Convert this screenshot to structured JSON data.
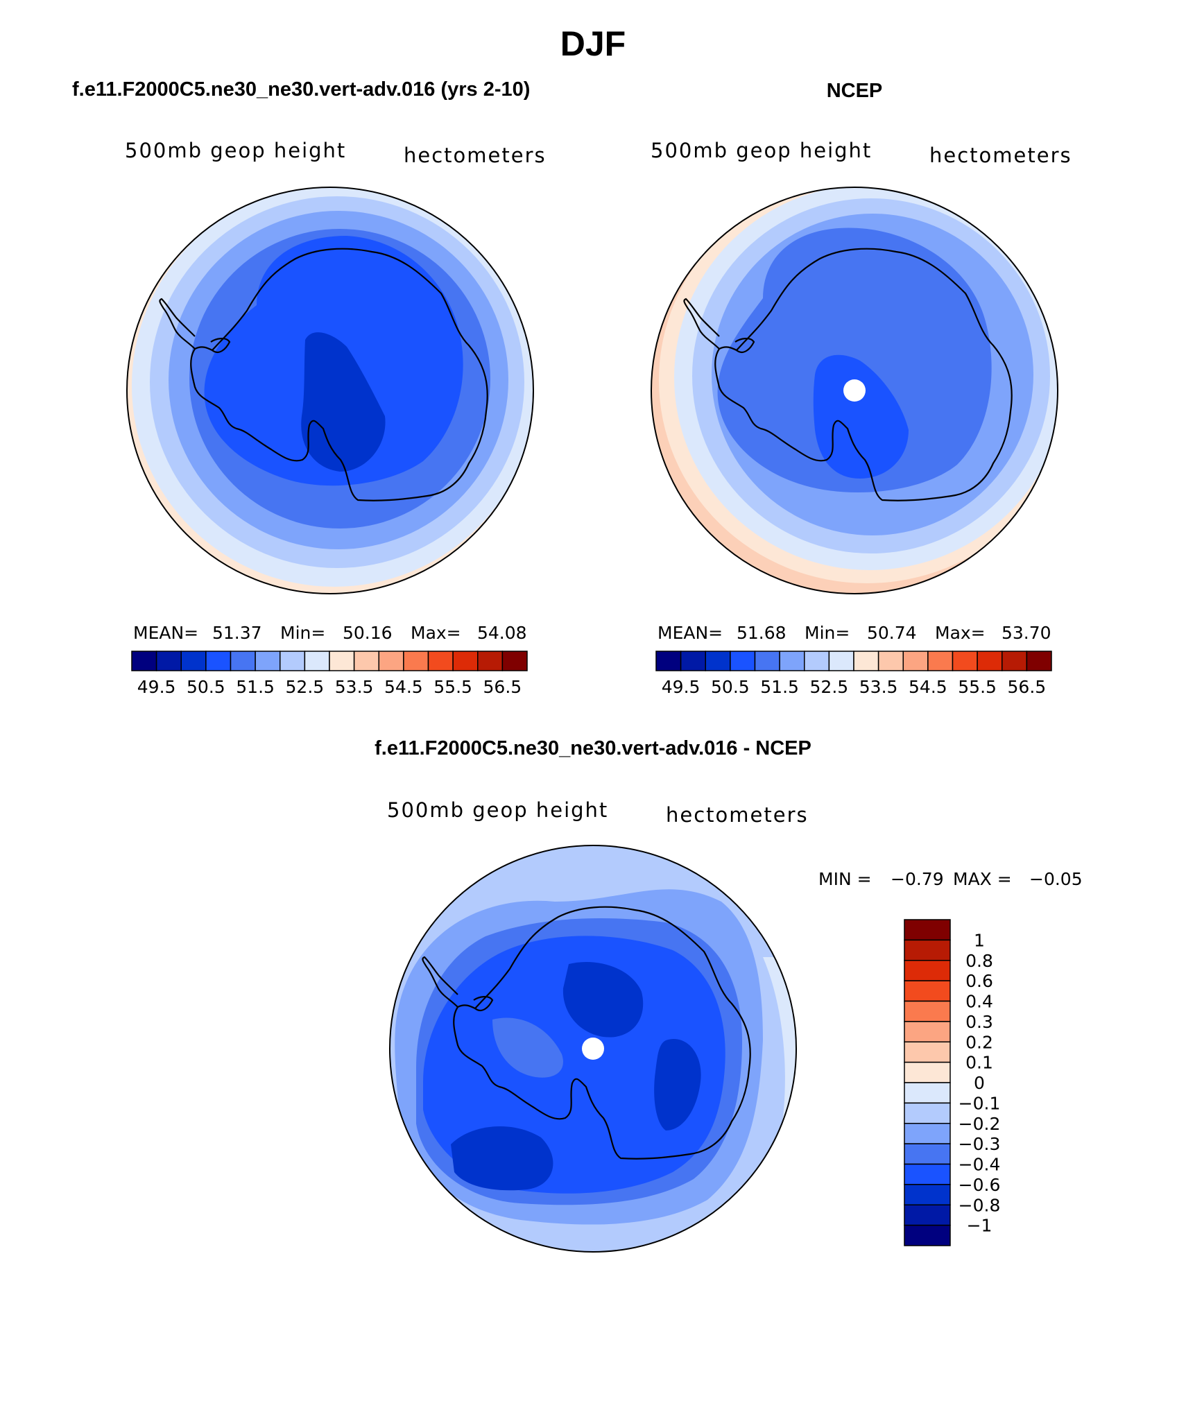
{
  "figure": {
    "title": "DJF",
    "bottom_title": "f.e11.F2000C5.ne30_ne30.vert-adv.016 - NCEP"
  },
  "panels": [
    {
      "heading": "f.e11.F2000C5.ne30_ne30.vert-adv.016 (yrs 2-10)",
      "left_label": "500mb geop height",
      "right_label": "hectometers",
      "stats": {
        "mean_label": "MEAN=",
        "mean": "51.37",
        "min_label": "Min=",
        "min": "50.16",
        "max_label": "Max=",
        "max": "54.08"
      },
      "pole_hole": false
    },
    {
      "heading": "NCEP",
      "left_label": "500mb geop height",
      "right_label": "hectometers",
      "stats": {
        "mean_label": "MEAN=",
        "mean": "51.68",
        "min_label": "Min=",
        "min": "50.74",
        "max_label": "Max=",
        "max": "53.70"
      },
      "pole_hole": true
    },
    {
      "left_label": "500mb geop height",
      "right_label": "hectometers",
      "stats": {
        "min_label": "MIN =",
        "min": "−0.79",
        "max_label": "MAX =",
        "max": "−0.05"
      },
      "pole_hole": true
    }
  ],
  "colorbar_full": {
    "colors": [
      "#00007f",
      "#0019a6",
      "#0033cc",
      "#1a53ff",
      "#4775f2",
      "#7ea4fb",
      "#b3cbfd",
      "#dbe8fc",
      "#fde7d6",
      "#fdc8ac",
      "#fca582",
      "#fa7a4e",
      "#f24b1e",
      "#dd2b07",
      "#b71b04",
      "#7f0000"
    ],
    "tick_labels": [
      "49.5",
      "50.5",
      "51.5",
      "52.5",
      "53.5",
      "54.5",
      "55.5",
      "56.5"
    ]
  },
  "colorbar_diff": {
    "colors": [
      "#7f0000",
      "#b71b04",
      "#dd2b07",
      "#f24b1e",
      "#fa7a4e",
      "#fca582",
      "#fdc8ac",
      "#fde7d6",
      "#dbe8fc",
      "#b3cbfd",
      "#7ea4fb",
      "#4775f2",
      "#1a53ff",
      "#0033cc",
      "#0019a6",
      "#00007f"
    ],
    "tick_labels": [
      "1",
      "0.8",
      "0.6",
      "0.4",
      "0.3",
      "0.2",
      "0.1",
      "0",
      "−0.1",
      "−0.2",
      "−0.3",
      "−0.4",
      "−0.6",
      "−0.8",
      "−1"
    ]
  }
}
